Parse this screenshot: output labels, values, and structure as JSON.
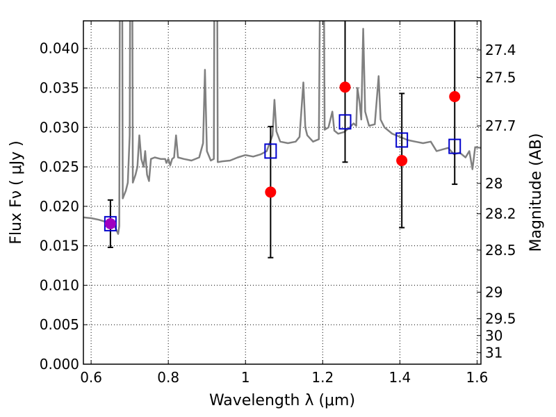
{
  "chart_data": {
    "type": "scatter",
    "xlabel": "Wavelength  λ (μm)",
    "ylabel": "Flux  Fν  ( μJy )",
    "y2label": "Magnitude (AB)",
    "xlim": [
      0.58,
      1.61
    ],
    "ylim": [
      0.0,
      0.0435
    ],
    "grid": true,
    "x_ticks": [
      {
        "v": 0.6,
        "label": "0.6"
      },
      {
        "v": 0.8,
        "label": "0.8"
      },
      {
        "v": 1.0,
        "label": "1"
      },
      {
        "v": 1.2,
        "label": "1.2"
      },
      {
        "v": 1.4,
        "label": "1.4"
      },
      {
        "v": 1.6,
        "label": "1.6"
      }
    ],
    "y_ticks": [
      {
        "v": 0.0,
        "label": "0.000"
      },
      {
        "v": 0.005,
        "label": "0.005"
      },
      {
        "v": 0.01,
        "label": "0.010"
      },
      {
        "v": 0.015,
        "label": "0.015"
      },
      {
        "v": 0.02,
        "label": "0.020"
      },
      {
        "v": 0.025,
        "label": "0.025"
      },
      {
        "v": 0.03,
        "label": "0.030"
      },
      {
        "v": 0.035,
        "label": "0.035"
      },
      {
        "v": 0.04,
        "label": "0.040"
      }
    ],
    "mag_ticks": [
      {
        "label": "27.4"
      },
      {
        "label": "27.5"
      },
      {
        "label": "27.7"
      },
      {
        "label": "28"
      },
      {
        "label": "28.2"
      },
      {
        "label": "28.5"
      },
      {
        "label": "29"
      },
      {
        "label": "29.5"
      },
      {
        "label": "30"
      },
      {
        "label": "31"
      }
    ],
    "model_spectrum": {
      "color": "#808080",
      "points": [
        [
          0.58,
          0.0186
        ],
        [
          0.6,
          0.0185
        ],
        [
          0.62,
          0.0183
        ],
        [
          0.64,
          0.018
        ],
        [
          0.66,
          0.0176
        ],
        [
          0.67,
          0.0165
        ],
        [
          0.673,
          0.0175
        ],
        [
          0.675,
          0.06
        ],
        [
          0.68,
          0.06
        ],
        [
          0.682,
          0.021
        ],
        [
          0.69,
          0.022
        ],
        [
          0.695,
          0.023
        ],
        [
          0.7,
          0.029
        ],
        [
          0.702,
          0.06
        ],
        [
          0.706,
          0.06
        ],
        [
          0.708,
          0.023
        ],
        [
          0.715,
          0.024
        ],
        [
          0.72,
          0.025
        ],
        [
          0.725,
          0.029
        ],
        [
          0.73,
          0.026
        ],
        [
          0.736,
          0.025
        ],
        [
          0.74,
          0.027
        ],
        [
          0.745,
          0.024
        ],
        [
          0.75,
          0.0232
        ],
        [
          0.755,
          0.026
        ],
        [
          0.765,
          0.0262
        ],
        [
          0.78,
          0.026
        ],
        [
          0.792,
          0.026
        ],
        [
          0.795,
          0.0255
        ],
        [
          0.8,
          0.026
        ],
        [
          0.805,
          0.0252
        ],
        [
          0.81,
          0.026
        ],
        [
          0.815,
          0.0262
        ],
        [
          0.82,
          0.029
        ],
        [
          0.825,
          0.0262
        ],
        [
          0.84,
          0.026
        ],
        [
          0.86,
          0.0258
        ],
        [
          0.88,
          0.0262
        ],
        [
          0.89,
          0.028
        ],
        [
          0.895,
          0.0373
        ],
        [
          0.9,
          0.027
        ],
        [
          0.91,
          0.0258
        ],
        [
          0.918,
          0.026
        ],
        [
          0.92,
          0.06
        ],
        [
          0.926,
          0.06
        ],
        [
          0.928,
          0.0256
        ],
        [
          0.94,
          0.0257
        ],
        [
          0.96,
          0.0258
        ],
        [
          0.98,
          0.0262
        ],
        [
          1.0,
          0.0265
        ],
        [
          1.02,
          0.0263
        ],
        [
          1.04,
          0.0266
        ],
        [
          1.055,
          0.027
        ],
        [
          1.07,
          0.029
        ],
        [
          1.075,
          0.0335
        ],
        [
          1.08,
          0.0295
        ],
        [
          1.09,
          0.0282
        ],
        [
          1.11,
          0.028
        ],
        [
          1.13,
          0.0282
        ],
        [
          1.14,
          0.0288
        ],
        [
          1.15,
          0.0357
        ],
        [
          1.155,
          0.03
        ],
        [
          1.16,
          0.029
        ],
        [
          1.175,
          0.0282
        ],
        [
          1.19,
          0.0285
        ],
        [
          1.195,
          0.06
        ],
        [
          1.202,
          0.06
        ],
        [
          1.205,
          0.0297
        ],
        [
          1.215,
          0.03
        ],
        [
          1.225,
          0.032
        ],
        [
          1.23,
          0.0296
        ],
        [
          1.24,
          0.0292
        ],
        [
          1.255,
          0.0294
        ],
        [
          1.27,
          0.03
        ],
        [
          1.28,
          0.0305
        ],
        [
          1.287,
          0.0302
        ],
        [
          1.29,
          0.035
        ],
        [
          1.296,
          0.033
        ],
        [
          1.3,
          0.031
        ],
        [
          1.305,
          0.0425
        ],
        [
          1.31,
          0.032
        ],
        [
          1.32,
          0.0302
        ],
        [
          1.335,
          0.0304
        ],
        [
          1.345,
          0.0365
        ],
        [
          1.35,
          0.031
        ],
        [
          1.36,
          0.03
        ],
        [
          1.38,
          0.0292
        ],
        [
          1.4,
          0.0288
        ],
        [
          1.42,
          0.0284
        ],
        [
          1.44,
          0.0282
        ],
        [
          1.46,
          0.028
        ],
        [
          1.48,
          0.0282
        ],
        [
          1.495,
          0.027
        ],
        [
          1.51,
          0.0272
        ],
        [
          1.525,
          0.0274
        ],
        [
          1.54,
          0.0266
        ],
        [
          1.555,
          0.0268
        ],
        [
          1.57,
          0.0262
        ],
        [
          1.58,
          0.027
        ],
        [
          1.588,
          0.0247
        ],
        [
          1.595,
          0.0275
        ],
        [
          1.61,
          0.0274
        ]
      ]
    },
    "observed": {
      "color": "#ff0000",
      "points": [
        {
          "x": 0.65,
          "y": 0.0178,
          "yerr": 0.003
        },
        {
          "x": 1.065,
          "y": 0.0218,
          "yerr": 0.0083
        },
        {
          "x": 1.258,
          "y": 0.0351,
          "yerr": 0.0095
        },
        {
          "x": 1.405,
          "y": 0.0258,
          "yerr": 0.0085
        },
        {
          "x": 1.542,
          "y": 0.0339,
          "yerr": 0.0111
        }
      ]
    },
    "model_photometry": {
      "color": "#0000cc",
      "points": [
        {
          "x": 0.65,
          "y": 0.0178
        },
        {
          "x": 1.065,
          "y": 0.027
        },
        {
          "x": 1.258,
          "y": 0.0307
        },
        {
          "x": 1.405,
          "y": 0.0284
        },
        {
          "x": 1.542,
          "y": 0.0276
        }
      ]
    },
    "overlap_marker_color": "#a000c0"
  }
}
